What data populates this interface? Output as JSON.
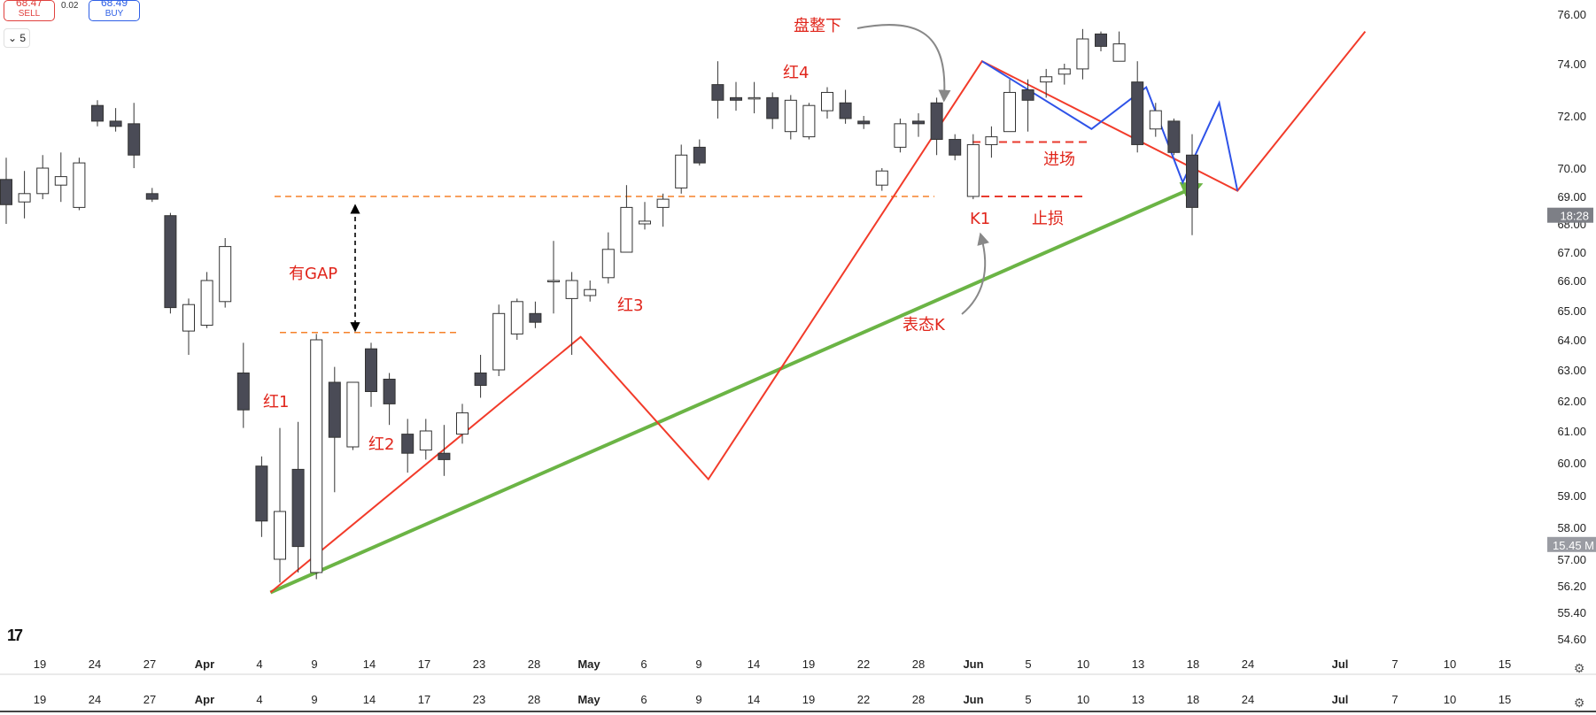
{
  "trade": {
    "sell_price": "68.47",
    "sell_label": "SELL",
    "spread": "0.02",
    "buy_price": "68.49",
    "buy_label": "BUY"
  },
  "interval": "⌄ 5",
  "logo_text": "17",
  "settings_icon": "gear-icon",
  "chart_data": {
    "type": "candlestick",
    "ylim": [
      54.6,
      76.0
    ],
    "price_ticks": [
      "54.60",
      "55.40",
      "56.20",
      "57.00",
      "58.00",
      "59.00",
      "60.00",
      "61.00",
      "62.00",
      "63.00",
      "64.00",
      "65.00",
      "66.00",
      "67.00",
      "68.00",
      "69.00",
      "70.00",
      "72.00",
      "74.00",
      "76.00"
    ],
    "price_tag": {
      "label": "18:28",
      "value": 68.3
    },
    "volume_tag": {
      "label": "15.45 M",
      "value": 57.45
    },
    "date_ticks": [
      {
        "label": "19",
        "bold": false
      },
      {
        "label": "24",
        "bold": false
      },
      {
        "label": "27",
        "bold": false
      },
      {
        "label": "Apr",
        "bold": true
      },
      {
        "label": "4",
        "bold": false
      },
      {
        "label": "9",
        "bold": false
      },
      {
        "label": "14",
        "bold": false
      },
      {
        "label": "17",
        "bold": false
      },
      {
        "label": "23",
        "bold": false
      },
      {
        "label": "28",
        "bold": false
      },
      {
        "label": "May",
        "bold": true
      },
      {
        "label": "6",
        "bold": false
      },
      {
        "label": "9",
        "bold": false
      },
      {
        "label": "14",
        "bold": false
      },
      {
        "label": "19",
        "bold": false
      },
      {
        "label": "22",
        "bold": false
      },
      {
        "label": "28",
        "bold": false
      },
      {
        "label": "Jun",
        "bold": true
      },
      {
        "label": "5",
        "bold": false
      },
      {
        "label": "10",
        "bold": false
      },
      {
        "label": "13",
        "bold": false
      },
      {
        "label": "18",
        "bold": false
      },
      {
        "label": "24",
        "bold": false
      },
      {
        "label": "Jul",
        "bold": true
      },
      {
        "label": "7",
        "bold": false
      },
      {
        "label": "10",
        "bold": false
      },
      {
        "label": "15",
        "bold": false
      }
    ],
    "candles": [
      {
        "o": 69.6,
        "h": 70.4,
        "l": 68.0,
        "c": 68.7
      },
      {
        "o": 68.8,
        "h": 69.9,
        "l": 68.2,
        "c": 69.1
      },
      {
        "o": 69.1,
        "h": 70.5,
        "l": 68.9,
        "c": 70.0
      },
      {
        "o": 69.4,
        "h": 70.6,
        "l": 68.8,
        "c": 69.7
      },
      {
        "o": 68.6,
        "h": 70.4,
        "l": 68.5,
        "c": 70.2
      },
      {
        "o": 72.4,
        "h": 72.6,
        "l": 71.6,
        "c": 71.8
      },
      {
        "o": 71.8,
        "h": 72.3,
        "l": 71.4,
        "c": 71.6
      },
      {
        "o": 71.7,
        "h": 72.5,
        "l": 70.0,
        "c": 70.5
      },
      {
        "o": 69.1,
        "h": 69.3,
        "l": 68.8,
        "c": 68.9
      },
      {
        "o": 68.3,
        "h": 68.4,
        "l": 64.9,
        "c": 65.1
      },
      {
        "o": 64.3,
        "h": 65.4,
        "l": 63.5,
        "c": 65.2
      },
      {
        "o": 64.5,
        "h": 66.3,
        "l": 64.4,
        "c": 66.0
      },
      {
        "o": 65.3,
        "h": 67.5,
        "l": 65.1,
        "c": 67.2
      },
      {
        "o": 62.9,
        "h": 63.9,
        "l": 61.1,
        "c": 61.7
      },
      {
        "o": 59.9,
        "h": 60.2,
        "l": 57.7,
        "c": 58.2
      },
      {
        "o": 57.0,
        "h": 61.1,
        "l": 56.3,
        "c": 58.5
      },
      {
        "o": 59.8,
        "h": 61.3,
        "l": 56.6,
        "c": 57.4
      },
      {
        "o": 56.6,
        "h": 64.2,
        "l": 56.4,
        "c": 64.0
      },
      {
        "o": 62.6,
        "h": 63.1,
        "l": 59.1,
        "c": 60.8
      },
      {
        "o": 60.5,
        "h": 62.6,
        "l": 60.4,
        "c": 62.6
      },
      {
        "o": 63.7,
        "h": 63.9,
        "l": 61.8,
        "c": 62.3
      },
      {
        "o": 62.7,
        "h": 62.9,
        "l": 61.2,
        "c": 61.9
      },
      {
        "o": 60.9,
        "h": 61.4,
        "l": 59.7,
        "c": 60.3
      },
      {
        "o": 60.4,
        "h": 61.4,
        "l": 60.1,
        "c": 61.0
      },
      {
        "o": 60.3,
        "h": 61.2,
        "l": 59.6,
        "c": 60.1
      },
      {
        "o": 60.9,
        "h": 61.9,
        "l": 60.6,
        "c": 61.6
      },
      {
        "o": 62.9,
        "h": 63.5,
        "l": 62.1,
        "c": 62.5
      },
      {
        "o": 63.0,
        "h": 65.2,
        "l": 62.8,
        "c": 64.9
      },
      {
        "o": 64.2,
        "h": 65.4,
        "l": 64.0,
        "c": 65.3
      },
      {
        "o": 64.9,
        "h": 65.3,
        "l": 64.4,
        "c": 64.6
      },
      {
        "o": 66.0,
        "h": 67.4,
        "l": 64.9,
        "c": 66.0
      },
      {
        "o": 65.4,
        "h": 66.3,
        "l": 63.5,
        "c": 66.0
      },
      {
        "o": 65.5,
        "h": 66.0,
        "l": 65.3,
        "c": 65.7
      },
      {
        "o": 66.1,
        "h": 67.7,
        "l": 65.9,
        "c": 67.1
      },
      {
        "o": 67.0,
        "h": 69.4,
        "l": 67.0,
        "c": 68.6
      },
      {
        "o": 68.0,
        "h": 68.8,
        "l": 67.8,
        "c": 68.1
      },
      {
        "o": 68.6,
        "h": 69.1,
        "l": 67.9,
        "c": 68.9
      },
      {
        "o": 69.3,
        "h": 70.9,
        "l": 69.1,
        "c": 70.5
      },
      {
        "o": 70.8,
        "h": 71.1,
        "l": 70.1,
        "c": 70.2
      },
      {
        "o": 73.2,
        "h": 74.1,
        "l": 71.9,
        "c": 72.6
      },
      {
        "o": 72.7,
        "h": 73.3,
        "l": 72.2,
        "c": 72.6
      },
      {
        "o": 72.7,
        "h": 73.3,
        "l": 72.1,
        "c": 72.7
      },
      {
        "o": 72.7,
        "h": 72.9,
        "l": 71.5,
        "c": 71.9
      },
      {
        "o": 71.4,
        "h": 72.8,
        "l": 71.1,
        "c": 72.6
      },
      {
        "o": 71.2,
        "h": 72.5,
        "l": 71.1,
        "c": 72.4
      },
      {
        "o": 72.2,
        "h": 73.1,
        "l": 71.9,
        "c": 72.9
      },
      {
        "o": 72.5,
        "h": 73.0,
        "l": 71.7,
        "c": 71.9
      },
      {
        "o": 71.8,
        "h": 72.0,
        "l": 71.5,
        "c": 71.7
      },
      {
        "o": 69.4,
        "h": 70.0,
        "l": 69.2,
        "c": 69.9
      },
      {
        "o": 70.8,
        "h": 71.9,
        "l": 70.6,
        "c": 71.7
      },
      {
        "o": 71.8,
        "h": 72.1,
        "l": 71.2,
        "c": 71.7
      },
      {
        "o": 72.5,
        "h": 72.7,
        "l": 70.5,
        "c": 71.1
      },
      {
        "o": 71.1,
        "h": 71.3,
        "l": 70.3,
        "c": 70.5
      },
      {
        "o": 69.0,
        "h": 71.3,
        "l": 68.9,
        "c": 70.9
      },
      {
        "o": 70.9,
        "h": 71.6,
        "l": 70.4,
        "c": 71.2
      },
      {
        "o": 71.4,
        "h": 73.4,
        "l": 71.4,
        "c": 72.9
      },
      {
        "o": 73.0,
        "h": 73.4,
        "l": 71.4,
        "c": 72.6
      },
      {
        "o": 73.3,
        "h": 73.8,
        "l": 72.7,
        "c": 73.5
      },
      {
        "o": 73.6,
        "h": 74.0,
        "l": 73.2,
        "c": 73.8
      },
      {
        "o": 73.8,
        "h": 75.4,
        "l": 73.4,
        "c": 75.0
      },
      {
        "o": 75.2,
        "h": 75.3,
        "l": 74.5,
        "c": 74.7
      },
      {
        "o": 74.1,
        "h": 75.3,
        "l": 74.1,
        "c": 74.8
      },
      {
        "o": 73.3,
        "h": 74.1,
        "l": 70.6,
        "c": 70.9
      },
      {
        "o": 71.5,
        "h": 72.5,
        "l": 71.2,
        "c": 72.2
      },
      {
        "o": 71.8,
        "h": 71.9,
        "l": 70.5,
        "c": 70.6
      },
      {
        "o": 70.5,
        "h": 71.3,
        "l": 67.6,
        "c": 68.6
      }
    ],
    "annotations": [
      {
        "text": "红1",
        "color": "#e0251b"
      },
      {
        "text": "红2",
        "color": "#e0251b"
      },
      {
        "text": "红3",
        "color": "#e0251b"
      },
      {
        "text": "红4",
        "color": "#e0251b"
      },
      {
        "text": "有GAP",
        "color": "#e0251b"
      },
      {
        "text": "盘整下",
        "color": "#e0251b"
      },
      {
        "text": "进场",
        "color": "#e0251b"
      },
      {
        "text": "止损",
        "color": "#e0251b"
      },
      {
        "text": "K1",
        "color": "#e0251b"
      },
      {
        "text": "表态K",
        "color": "#e0251b"
      }
    ],
    "levels": {
      "gap_top": 69.0,
      "gap_bottom": 64.25,
      "entry": 71.0,
      "stop": 69.0
    },
    "red_zigzag": [
      [
        56.0,
        0
      ],
      [
        64.1,
        17
      ],
      [
        59.5,
        24
      ],
      [
        74.1,
        39
      ],
      [
        69.2,
        53
      ],
      [
        75.3,
        60
      ]
    ],
    "blue_zigzag": [
      [
        74.1,
        39
      ],
      [
        71.5,
        45
      ],
      [
        73.1,
        48
      ],
      [
        69.5,
        50
      ],
      [
        72.5,
        52
      ],
      [
        69.2,
        53
      ]
    ],
    "green_arrow": [
      [
        56.0,
        0
      ],
      [
        69.4,
        51
      ]
    ],
    "colors": {
      "bear_candle": "#4a4b56",
      "bull_candle": "#ffffff",
      "red_line": "#f23b2a",
      "blue_line": "#2f53e8",
      "green_line": "#6bb445",
      "orange_dash": "#f5812a",
      "red_dash": "#e83a2e"
    }
  }
}
